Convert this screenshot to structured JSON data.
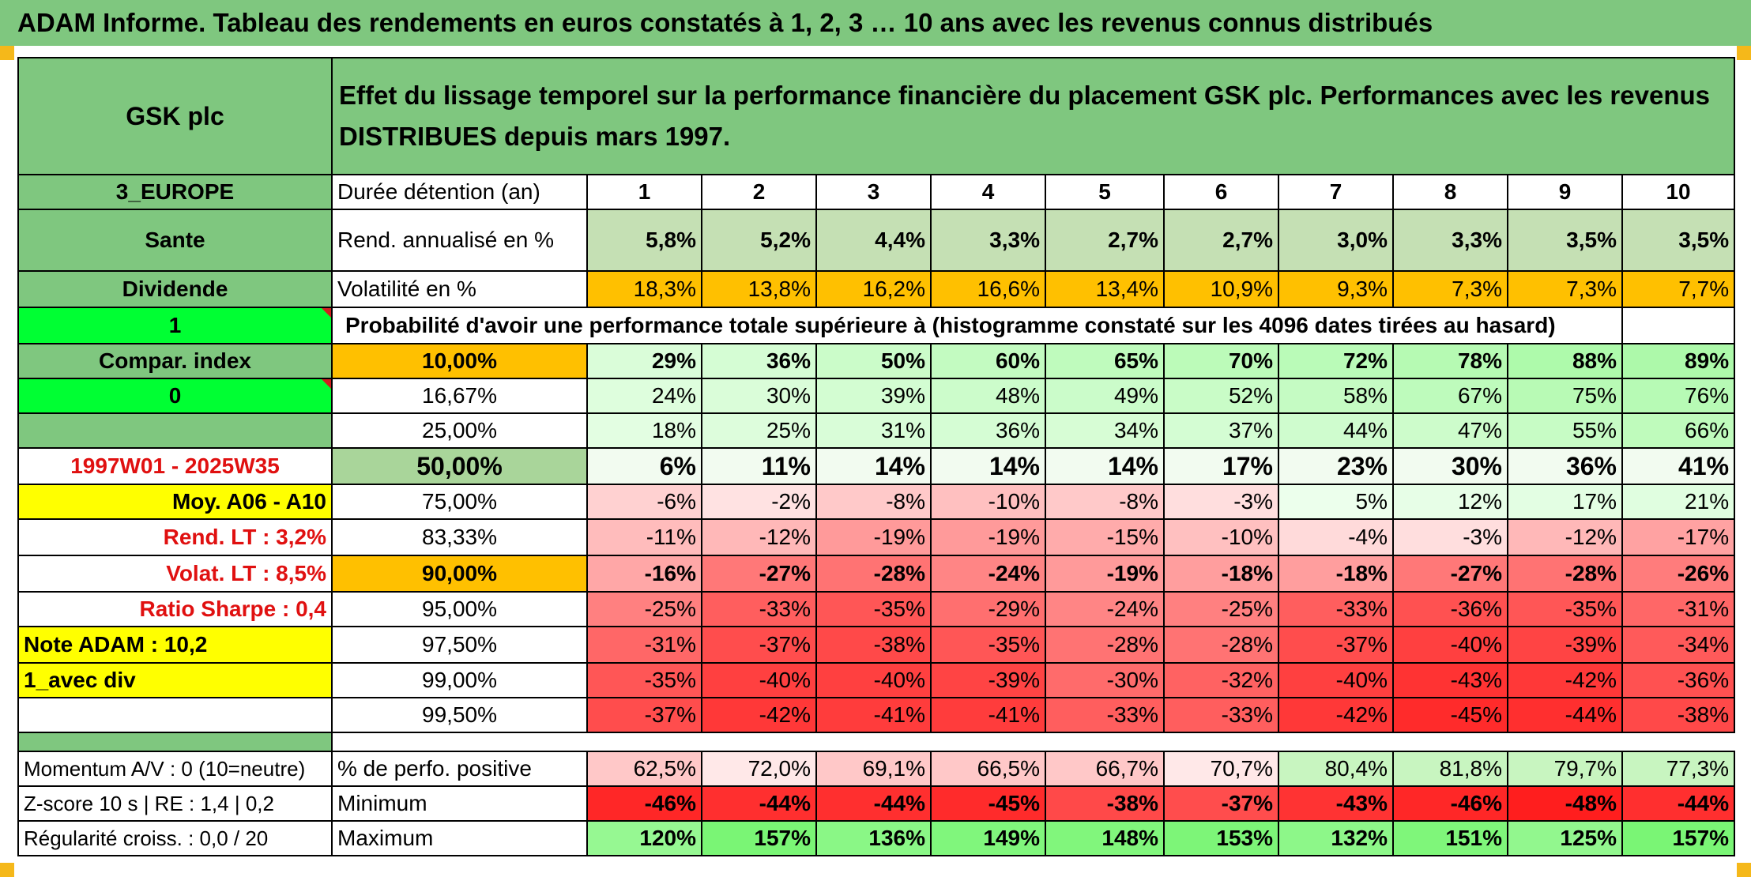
{
  "title": "ADAM Informe. Tableau des rendements en euros constatés à 1, 2, 3 … 10 ans avec les revenus connus distribués",
  "header": {
    "company": "GSK plc",
    "description": "Effet du lissage temporel sur la performance financière du placement GSK plc. Performances avec les revenus DISTRIBUES depuis mars 1997."
  },
  "side": {
    "region": "3_EUROPE",
    "sector": "Sante",
    "type": "Dividende",
    "flag1": "1",
    "compar": "Compar. index",
    "flag0": "0",
    "blank": "",
    "period": "1997W01 - 2025W35",
    "moy": "Moy. A06 - A10",
    "rend_lt": "Rend. LT :   3,2%",
    "volat_lt": "Volat. LT :   8,5%",
    "sharpe": "Ratio Sharpe :    0,4",
    "note": "Note ADAM : 10,2",
    "div": "1_avec div"
  },
  "labels": {
    "duration": "Durée détention (an)",
    "rend": "Rend. annualisé en %",
    "volat": "Volatilité en %",
    "proba": "Probabilité d'avoir une performance totale supérieure à (histogramme constaté sur les 4096 dates tirées au hasard)",
    "pos": "% de perfo. positive",
    "min": "Minimum",
    "max": "Maximum"
  },
  "years": [
    "1",
    "2",
    "3",
    "4",
    "5",
    "6",
    "7",
    "8",
    "9",
    "10"
  ],
  "rend": [
    "5,8%",
    "5,2%",
    "4,4%",
    "3,3%",
    "2,7%",
    "2,7%",
    "3,0%",
    "3,3%",
    "3,5%",
    "3,5%"
  ],
  "volat": [
    "18,3%",
    "13,8%",
    "16,2%",
    "16,6%",
    "13,4%",
    "10,9%",
    "9,3%",
    "7,3%",
    "7,3%",
    "7,7%"
  ],
  "quantiles": [
    {
      "q": "10,00%",
      "v": [
        "29%",
        "36%",
        "50%",
        "60%",
        "65%",
        "70%",
        "72%",
        "78%",
        "88%",
        "89%"
      ]
    },
    {
      "q": "16,67%",
      "v": [
        "24%",
        "30%",
        "39%",
        "48%",
        "49%",
        "52%",
        "58%",
        "67%",
        "75%",
        "76%"
      ]
    },
    {
      "q": "25,00%",
      "v": [
        "18%",
        "25%",
        "31%",
        "36%",
        "34%",
        "37%",
        "44%",
        "47%",
        "55%",
        "66%"
      ]
    },
    {
      "q": "50,00%",
      "v": [
        "6%",
        "11%",
        "14%",
        "14%",
        "14%",
        "17%",
        "23%",
        "30%",
        "36%",
        "41%"
      ]
    },
    {
      "q": "75,00%",
      "v": [
        "-6%",
        "-2%",
        "-8%",
        "-10%",
        "-8%",
        "-3%",
        "5%",
        "12%",
        "17%",
        "21%"
      ]
    },
    {
      "q": "83,33%",
      "v": [
        "-11%",
        "-12%",
        "-19%",
        "-19%",
        "-15%",
        "-10%",
        "-4%",
        "-3%",
        "-12%",
        "-17%"
      ]
    },
    {
      "q": "90,00%",
      "v": [
        "-16%",
        "-27%",
        "-28%",
        "-24%",
        "-19%",
        "-18%",
        "-18%",
        "-27%",
        "-28%",
        "-26%"
      ]
    },
    {
      "q": "95,00%",
      "v": [
        "-25%",
        "-33%",
        "-35%",
        "-29%",
        "-24%",
        "-25%",
        "-33%",
        "-36%",
        "-35%",
        "-31%"
      ]
    },
    {
      "q": "97,50%",
      "v": [
        "-31%",
        "-37%",
        "-38%",
        "-35%",
        "-28%",
        "-28%",
        "-37%",
        "-40%",
        "-39%",
        "-34%"
      ]
    },
    {
      "q": "99,00%",
      "v": [
        "-35%",
        "-40%",
        "-40%",
        "-39%",
        "-30%",
        "-32%",
        "-40%",
        "-43%",
        "-42%",
        "-36%"
      ]
    },
    {
      "q": "99,50%",
      "v": [
        "-37%",
        "-42%",
        "-41%",
        "-41%",
        "-33%",
        "-33%",
        "-42%",
        "-45%",
        "-44%",
        "-38%"
      ]
    }
  ],
  "bottom": {
    "momentum": "Momentum A/V : 0 (10=neutre)",
    "zscore": "Z-score 10 s | RE : 1,4 | 0,2",
    "regul": "Régularité croiss. : 0,0 / 20"
  },
  "pos": [
    "62,5%",
    "72,0%",
    "69,1%",
    "66,5%",
    "66,7%",
    "70,7%",
    "80,4%",
    "81,8%",
    "79,7%",
    "77,3%"
  ],
  "min": [
    "-46%",
    "-44%",
    "-44%",
    "-45%",
    "-38%",
    "-37%",
    "-43%",
    "-46%",
    "-48%",
    "-44%"
  ],
  "max": [
    "120%",
    "157%",
    "136%",
    "149%",
    "148%",
    "153%",
    "132%",
    "151%",
    "125%",
    "157%"
  ],
  "colors": {
    "header_green": "#7fc77f",
    "bright_green": "#00ff33",
    "yellow": "#ffff00",
    "orange": "#ffc000",
    "red_text": "#e01010"
  }
}
